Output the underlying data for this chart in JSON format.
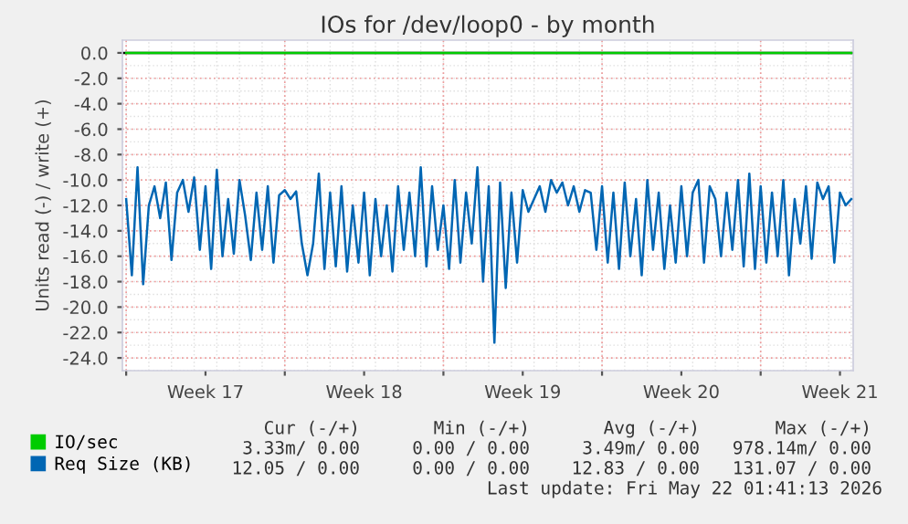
{
  "chart_data": {
    "type": "line",
    "title": "IOs for /dev/loop0 - by month",
    "ylabel": "Units read (-) / write (+)",
    "xlim": [
      "2026-04-19T20:00",
      "2026-05-22T02:00"
    ],
    "xticks": [
      {
        "value": "2026-04-20T00:00",
        "label": null
      },
      {
        "value": "2026-04-23T12:00",
        "label": "Week 17"
      },
      {
        "value": "2026-04-27T00:00",
        "label": null
      },
      {
        "value": "2026-04-30T12:00",
        "label": "Week 18"
      },
      {
        "value": "2026-05-04T00:00",
        "label": null
      },
      {
        "value": "2026-05-07T12:00",
        "label": "Week 19"
      },
      {
        "value": "2026-05-11T00:00",
        "label": null
      },
      {
        "value": "2026-05-14T12:00",
        "label": "Week 20"
      },
      {
        "value": "2026-05-18T00:00",
        "label": null
      },
      {
        "value": "2026-05-21T12:00",
        "label": "Week 21"
      }
    ],
    "ylim": [
      -25,
      1
    ],
    "yticks": [
      {
        "value": 0,
        "label": "0.0"
      },
      {
        "value": -2,
        "label": "-2.0"
      },
      {
        "value": -4,
        "label": "-4.0"
      },
      {
        "value": -6,
        "label": "-6.0"
      },
      {
        "value": -8,
        "label": "-8.0"
      },
      {
        "value": -10,
        "label": "-10.0"
      },
      {
        "value": -12,
        "label": "-12.0"
      },
      {
        "value": -14,
        "label": "-14.0"
      },
      {
        "value": -16,
        "label": "-16.0"
      },
      {
        "value": -18,
        "label": "-18.0"
      },
      {
        "value": -20,
        "label": "-20.0"
      },
      {
        "value": -22,
        "label": "-22.0"
      },
      {
        "value": -24,
        "label": "-24.0"
      }
    ],
    "grid": true,
    "legend": "bottom left",
    "marker": "none",
    "line_style": "solid",
    "ref_lines": [
      {
        "axis": "y",
        "value": 0,
        "label": null,
        "color": "#000000"
      }
    ],
    "annotations": [
      "Cur (-/+)",
      "Min (-/+)",
      "Avg (-/+)",
      "Max (-/+)",
      "3.33m/ 0.00",
      "0.00 / 0.00",
      "3.49m/ 0.00",
      "978.14m/ 0.00",
      "12.05 / 0.00",
      "0.00 / 0.00",
      "12.83 / 0.00",
      "131.07 / 0.00",
      "Last update: Fri May 22 01:41:13 2026"
    ],
    "series": [
      {
        "name": "IO/sec",
        "color": "#00cc00",
        "x": [
          "2026-04-20T00:00",
          "2026-05-22T00:00"
        ],
        "values": [
          0,
          0
        ]
      },
      {
        "name": "Req Size (KB)",
        "color": "#0066b3",
        "x": [
          "2026-04-20T00:00",
          "2026-04-20T06:00",
          "2026-04-20T12:00",
          "2026-04-20T18:00",
          "2026-04-21T00:00",
          "2026-04-21T06:00",
          "2026-04-21T12:00",
          "2026-04-21T18:00",
          "2026-04-22T00:00",
          "2026-04-22T06:00",
          "2026-04-22T12:00",
          "2026-04-22T18:00",
          "2026-04-23T00:00",
          "2026-04-23T06:00",
          "2026-04-23T12:00",
          "2026-04-23T18:00",
          "2026-04-24T00:00",
          "2026-04-24T06:00",
          "2026-04-24T12:00",
          "2026-04-24T18:00",
          "2026-04-25T00:00",
          "2026-04-25T06:00",
          "2026-04-25T12:00",
          "2026-04-25T18:00",
          "2026-04-26T00:00",
          "2026-04-26T06:00",
          "2026-04-26T12:00",
          "2026-04-26T18:00",
          "2026-04-27T00:00",
          "2026-04-27T06:00",
          "2026-04-27T12:00",
          "2026-04-27T18:00",
          "2026-04-28T00:00",
          "2026-04-28T06:00",
          "2026-04-28T12:00",
          "2026-04-28T18:00",
          "2026-04-29T00:00",
          "2026-04-29T06:00",
          "2026-04-29T12:00",
          "2026-04-29T18:00",
          "2026-04-30T00:00",
          "2026-04-30T06:00",
          "2026-04-30T12:00",
          "2026-04-30T18:00",
          "2026-05-01T00:00",
          "2026-05-01T06:00",
          "2026-05-01T12:00",
          "2026-05-01T18:00",
          "2026-05-02T00:00",
          "2026-05-02T06:00",
          "2026-05-02T12:00",
          "2026-05-02T18:00",
          "2026-05-03T00:00",
          "2026-05-03T06:00",
          "2026-05-03T12:00",
          "2026-05-03T18:00",
          "2026-05-04T00:00",
          "2026-05-04T06:00",
          "2026-05-04T12:00",
          "2026-05-04T18:00",
          "2026-05-05T00:00",
          "2026-05-05T06:00",
          "2026-05-05T12:00",
          "2026-05-05T18:00",
          "2026-05-06T00:00",
          "2026-05-06T06:00",
          "2026-05-06T12:00",
          "2026-05-06T18:00",
          "2026-05-07T00:00",
          "2026-05-07T06:00",
          "2026-05-07T12:00",
          "2026-05-07T18:00",
          "2026-05-08T00:00",
          "2026-05-08T06:00",
          "2026-05-08T12:00",
          "2026-05-08T18:00",
          "2026-05-09T00:00",
          "2026-05-09T06:00",
          "2026-05-09T12:00",
          "2026-05-09T18:00",
          "2026-05-10T00:00",
          "2026-05-10T06:00",
          "2026-05-10T12:00",
          "2026-05-10T18:00",
          "2026-05-11T00:00",
          "2026-05-11T06:00",
          "2026-05-11T12:00",
          "2026-05-11T18:00",
          "2026-05-12T00:00",
          "2026-05-12T06:00",
          "2026-05-12T12:00",
          "2026-05-12T18:00",
          "2026-05-13T00:00",
          "2026-05-13T06:00",
          "2026-05-13T12:00",
          "2026-05-13T18:00",
          "2026-05-14T00:00",
          "2026-05-14T06:00",
          "2026-05-14T12:00",
          "2026-05-14T18:00",
          "2026-05-15T00:00",
          "2026-05-15T06:00",
          "2026-05-15T12:00",
          "2026-05-15T18:00",
          "2026-05-16T00:00",
          "2026-05-16T06:00",
          "2026-05-16T12:00",
          "2026-05-16T18:00",
          "2026-05-17T00:00",
          "2026-05-17T06:00",
          "2026-05-17T12:00",
          "2026-05-17T18:00",
          "2026-05-18T00:00",
          "2026-05-18T06:00",
          "2026-05-18T12:00",
          "2026-05-18T18:00",
          "2026-05-19T00:00",
          "2026-05-19T06:00",
          "2026-05-19T12:00",
          "2026-05-19T18:00",
          "2026-05-20T00:00",
          "2026-05-20T06:00",
          "2026-05-20T12:00",
          "2026-05-20T18:00",
          "2026-05-21T00:00",
          "2026-05-21T06:00",
          "2026-05-21T12:00",
          "2026-05-21T18:00",
          "2026-05-22T00:00"
        ],
        "values": [
          -11.5,
          -17.5,
          -9.0,
          -18.2,
          -12.0,
          -10.5,
          -13.0,
          -10.2,
          -16.3,
          -11.0,
          -10.0,
          -12.5,
          -9.8,
          -15.5,
          -10.5,
          -17.0,
          -9.2,
          -16.0,
          -11.5,
          -15.8,
          -10.0,
          -12.8,
          -16.3,
          -11.0,
          -15.5,
          -10.5,
          -16.5,
          -11.2,
          -10.8,
          -11.5,
          -10.9,
          -15.0,
          -17.5,
          -15.0,
          -9.5,
          -17.0,
          -11.0,
          -16.8,
          -10.5,
          -17.2,
          -12.0,
          -16.5,
          -11.0,
          -17.5,
          -11.5,
          -16.0,
          -12.0,
          -17.2,
          -10.5,
          -15.5,
          -11.0,
          -16.0,
          -9.0,
          -16.8,
          -10.5,
          -15.5,
          -12.0,
          -17.0,
          -10.0,
          -16.5,
          -11.0,
          -15.0,
          -9.0,
          -18.0,
          -10.5,
          -22.8,
          -10.2,
          -18.5,
          -11.0,
          -16.5,
          -10.8,
          -12.5,
          -11.5,
          -10.5,
          -12.5,
          -10.0,
          -11.0,
          -10.2,
          -12.0,
          -10.5,
          -12.5,
          -10.8,
          -11.0,
          -15.5,
          -10.5,
          -16.5,
          -11.0,
          -17.0,
          -10.2,
          -16.0,
          -11.5,
          -17.5,
          -10.0,
          -15.5,
          -11.0,
          -17.0,
          -12.0,
          -16.5,
          -10.5,
          -16.0,
          -11.0,
          -10.0,
          -16.5,
          -10.5,
          -11.5,
          -16.0,
          -11.0,
          -15.5,
          -10.0,
          -16.8,
          -9.5,
          -17.0,
          -10.5,
          -16.5,
          -11.0,
          -16.0,
          -10.0,
          -17.5,
          -11.5,
          -15.0,
          -10.5,
          -16.2,
          -10.2,
          -11.5,
          -10.5,
          -16.5,
          -11.0,
          -12.0,
          -11.5
        ]
      }
    ]
  }
}
